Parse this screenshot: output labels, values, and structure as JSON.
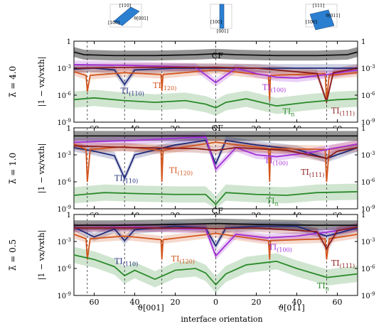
{
  "figure": {
    "x_label": "interface orientation",
    "x_sub_left": "ϑ[001]",
    "x_sub_right": "ϑ[011]",
    "y_label": "|1 − vx/vxth|",
    "insets": {
      "left": {
        "labels": [
          "[110]",
          "[100]",
          "ϑ[001]"
        ]
      },
      "center": {
        "labels": [
          "[100]",
          "[001]"
        ]
      },
      "right": {
        "labels": [
          "[111]",
          "[100]",
          "ϑ[011]"
        ]
      }
    }
  },
  "colors": {
    "CF": "#111111",
    "TI110": "#1f2a7a",
    "TI120": "#d2541c",
    "TI100": "#a12fd6",
    "TI111": "#8b1a1a",
    "TIn": "#2a8a2a"
  },
  "chart_data": [
    {
      "type": "line",
      "lambda_label": "λ̃ = 4.0",
      "xlim": [
        -70,
        70
      ],
      "ylim_log10": [
        -9,
        0
      ],
      "x_ticks": [
        "60",
        "40",
        "20",
        "0",
        "20",
        "40",
        "60"
      ],
      "y_ticks_left": [
        "1",
        "10^-3",
        "10^-6",
        "10^-9"
      ],
      "y_ticks_right": [
        "1",
        "10^-3",
        "10^-6",
        "10^-9"
      ],
      "dashed_x": [
        -63.4,
        -45,
        -26.6,
        0,
        26.6,
        54.7
      ],
      "series": [
        {
          "name": "CF",
          "color_key": "CF",
          "label_x": -2,
          "label_y": -1.9,
          "points": [
            [
              -70,
              -1.2
            ],
            [
              -65,
              -1.5
            ],
            [
              -50,
              -1.6
            ],
            [
              -30,
              -1.6
            ],
            [
              -10,
              -1.5
            ],
            [
              0,
              -1.4
            ],
            [
              10,
              -1.5
            ],
            [
              30,
              -1.6
            ],
            [
              50,
              -1.6
            ],
            [
              65,
              -1.5
            ],
            [
              70,
              -1.2
            ]
          ]
        },
        {
          "name": "TI(110)",
          "color_key": "TI110",
          "label_x": -47,
          "label_y": -5.8,
          "points": [
            [
              -70,
              -3.1
            ],
            [
              -60,
              -3.0
            ],
            [
              -50,
              -3.2
            ],
            [
              -45,
              -4.8
            ],
            [
              -40,
              -3.2
            ],
            [
              -20,
              -3.0
            ],
            [
              0,
              -3.0
            ],
            [
              20,
              -3.0
            ],
            [
              40,
              -3.0
            ],
            [
              70,
              -3.0
            ]
          ]
        },
        {
          "name": "TI(120)",
          "color_key": "TI120",
          "label_x": -31,
          "label_y": -5.2,
          "points": [
            [
              -70,
              -3.4
            ],
            [
              -64,
              -3.8
            ],
            [
              -63.4,
              -5.6
            ],
            [
              -62,
              -3.8
            ],
            [
              -45,
              -3.5
            ],
            [
              -27,
              -3.7
            ],
            [
              -26.6,
              -5.5
            ],
            [
              -26,
              -3.7
            ],
            [
              0,
              -3.2
            ],
            [
              26,
              -3.8
            ],
            [
              26.6,
              -6.6
            ],
            [
              27,
              -3.8
            ],
            [
              54,
              -3.6
            ],
            [
              54.7,
              -6.5
            ],
            [
              56,
              -3.8
            ],
            [
              70,
              -3.5
            ]
          ]
        },
        {
          "name": "TI(100)",
          "color_key": "TI100",
          "label_x": 23,
          "label_y": -5.4,
          "points": [
            [
              -70,
              -2.6
            ],
            [
              -40,
              -2.7
            ],
            [
              -10,
              -2.9
            ],
            [
              0,
              -4.6
            ],
            [
              10,
              -3.0
            ],
            [
              20,
              -3.6
            ],
            [
              30,
              -4.0
            ],
            [
              40,
              -4.1
            ],
            [
              55,
              -3.7
            ],
            [
              70,
              -3.2
            ]
          ]
        },
        {
          "name": "TI(111)",
          "color_key": "TI111",
          "label_x": 57,
          "label_y": -8.0,
          "points": [
            [
              -70,
              -3.0
            ],
            [
              -40,
              -2.9
            ],
            [
              -10,
              -2.9
            ],
            [
              0,
              -2.9
            ],
            [
              20,
              -3.0
            ],
            [
              50,
              -3.6
            ],
            [
              54.7,
              -6.7
            ],
            [
              58,
              -3.5
            ],
            [
              70,
              -3.0
            ]
          ]
        },
        {
          "name": "TIn",
          "color_key": "TIn",
          "label_x": 33,
          "label_y": -8.1,
          "points": [
            [
              -70,
              -6.5
            ],
            [
              -60,
              -6.3
            ],
            [
              -45,
              -6.6
            ],
            [
              -30,
              -6.8
            ],
            [
              -15,
              -6.6
            ],
            [
              -5,
              -7.0
            ],
            [
              0,
              -7.4
            ],
            [
              5,
              -6.8
            ],
            [
              15,
              -6.4
            ],
            [
              30,
              -7.2
            ],
            [
              45,
              -6.8
            ],
            [
              60,
              -6.5
            ],
            [
              70,
              -6.4
            ]
          ]
        }
      ]
    },
    {
      "type": "line",
      "lambda_label": "λ̃ = 1.0",
      "xlim": [
        -70,
        70
      ],
      "ylim_log10": [
        -9,
        0
      ],
      "x_ticks": [
        "60",
        "40",
        "20",
        "0",
        "20",
        "40",
        "60"
      ],
      "y_ticks_left": [
        "1",
        "10^-3",
        "10^-6",
        "10^-9"
      ],
      "y_ticks_right": [
        "1",
        "10^-3",
        "10^-6",
        "10^-9"
      ],
      "dashed_x": [
        -63.4,
        -45,
        -26.6,
        0,
        26.6,
        54.7
      ],
      "series": [
        {
          "name": "CF",
          "color_key": "CF",
          "label_x": -2,
          "label_y": -0.3,
          "points": [
            [
              -70,
              -0.9
            ],
            [
              -50,
              -0.9
            ],
            [
              -20,
              -0.9
            ],
            [
              0,
              -0.9
            ],
            [
              20,
              -0.9
            ],
            [
              50,
              -0.9
            ],
            [
              70,
              -0.9
            ]
          ]
        },
        {
          "name": "TI(110)",
          "color_key": "TI110",
          "label_x": -50,
          "label_y": -5.9,
          "points": [
            [
              -70,
              -2.2
            ],
            [
              -60,
              -2.6
            ],
            [
              -50,
              -3.1
            ],
            [
              -45,
              -5.6
            ],
            [
              -40,
              -3.0
            ],
            [
              -20,
              -1.9
            ],
            [
              -5,
              -1.4
            ],
            [
              0,
              -4.0
            ],
            [
              5,
              -1.4
            ],
            [
              20,
              -1.9
            ],
            [
              40,
              -2.4
            ],
            [
              54.7,
              -3.4
            ],
            [
              70,
              -2.2
            ]
          ]
        },
        {
          "name": "TI(120)",
          "color_key": "TI120",
          "label_x": -23,
          "label_y": -5.0,
          "points": [
            [
              -70,
              -1.8
            ],
            [
              -64,
              -2.4
            ],
            [
              -63.4,
              -6.0
            ],
            [
              -62,
              -2.4
            ],
            [
              -45,
              -2.1
            ],
            [
              -27,
              -2.5
            ],
            [
              -26.6,
              -6.0
            ],
            [
              -26,
              -2.5
            ],
            [
              0,
              -1.6
            ],
            [
              26,
              -2.3
            ],
            [
              26.6,
              -6.0
            ],
            [
              27,
              -2.3
            ],
            [
              54,
              -2.4
            ],
            [
              54.7,
              -6.0
            ],
            [
              56,
              -2.4
            ],
            [
              70,
              -1.8
            ]
          ]
        },
        {
          "name": "TI(100)",
          "color_key": "TI100",
          "label_x": 24,
          "label_y": -3.9,
          "points": [
            [
              -70,
              -1.6
            ],
            [
              -40,
              -1.4
            ],
            [
              -15,
              -1.1
            ],
            [
              -5,
              -1.0
            ],
            [
              0,
              -4.6
            ],
            [
              10,
              -2.2
            ],
            [
              20,
              -3.0
            ],
            [
              30,
              -3.2
            ],
            [
              45,
              -2.8
            ],
            [
              60,
              -2.2
            ],
            [
              70,
              -1.8
            ]
          ]
        },
        {
          "name": "TI(111)",
          "color_key": "TI111",
          "label_x": 42,
          "label_y": -5.2,
          "points": [
            [
              -70,
              -2.0
            ],
            [
              -40,
              -2.2
            ],
            [
              -10,
              -2.3
            ],
            [
              0,
              -2.5
            ],
            [
              10,
              -2.2
            ],
            [
              35,
              -2.5
            ],
            [
              54.7,
              -3.4
            ],
            [
              60,
              -2.6
            ],
            [
              70,
              -2.2
            ]
          ]
        },
        {
          "name": "TIn",
          "color_key": "TIn",
          "label_x": 25,
          "label_y": -8.4,
          "points": [
            [
              -70,
              -7.5
            ],
            [
              -55,
              -7.2
            ],
            [
              -40,
              -7.3
            ],
            [
              -20,
              -7.4
            ],
            [
              -5,
              -7.4
            ],
            [
              0,
              -8.5
            ],
            [
              5,
              -7.2
            ],
            [
              20,
              -7.4
            ],
            [
              35,
              -7.5
            ],
            [
              50,
              -7.2
            ],
            [
              70,
              -7.1
            ]
          ]
        }
      ]
    },
    {
      "type": "line",
      "lambda_label": "λ̃ = 0.5",
      "xlim": [
        -70,
        70
      ],
      "ylim_log10": [
        -9,
        0
      ],
      "x_ticks": [
        "60",
        "40",
        "20",
        "0",
        "20",
        "40",
        "60"
      ],
      "y_ticks_left": [
        "1",
        "10^-3",
        "10^-6",
        "10^-9"
      ],
      "y_ticks_right": [
        "1",
        "10^-3",
        "10^-6",
        "10^-9"
      ],
      "dashed_x": [
        -63.4,
        -45,
        -26.6,
        0,
        26.6,
        54.7
      ],
      "series": [
        {
          "name": "CF",
          "color_key": "CF",
          "label_x": -2,
          "label_y": 0.1,
          "points": [
            [
              -70,
              -1.2
            ],
            [
              -50,
              -1.2
            ],
            [
              -20,
              -1.1
            ],
            [
              0,
              -1.0
            ],
            [
              20,
              -1.1
            ],
            [
              50,
              -1.2
            ],
            [
              70,
              -1.2
            ]
          ]
        },
        {
          "name": "TI(110)",
          "color_key": "TI110",
          "label_x": -50,
          "label_y": -5.5,
          "points": [
            [
              -70,
              -1.4
            ],
            [
              -60,
              -2.5
            ],
            [
              -50,
              -1.6
            ],
            [
              -45,
              -2.9
            ],
            [
              -40,
              -1.7
            ],
            [
              -20,
              -1.3
            ],
            [
              -5,
              -1.5
            ],
            [
              0,
              -3.5
            ],
            [
              5,
              -1.5
            ],
            [
              20,
              -1.3
            ],
            [
              40,
              -1.3
            ],
            [
              54.7,
              -2.4
            ],
            [
              70,
              -1.5
            ]
          ]
        },
        {
          "name": "TI(120)",
          "color_key": "TI120",
          "label_x": -22,
          "label_y": -5.2,
          "points": [
            [
              -70,
              -2.2
            ],
            [
              -64,
              -2.7
            ],
            [
              -63.4,
              -5.0
            ],
            [
              -62,
              -2.7
            ],
            [
              -45,
              -2.4
            ],
            [
              -27,
              -2.8
            ],
            [
              -26.6,
              -5.0
            ],
            [
              -26,
              -2.8
            ],
            [
              0,
              -2.1
            ],
            [
              26,
              -2.9
            ],
            [
              26.6,
              -5.0
            ],
            [
              27,
              -2.9
            ],
            [
              54,
              -2.7
            ],
            [
              54.7,
              -5.0
            ],
            [
              56,
              -2.7
            ],
            [
              70,
              -2.2
            ]
          ]
        },
        {
          "name": "TI(100)",
          "color_key": "TI100",
          "label_x": 26,
          "label_y": -3.9,
          "points": [
            [
              -70,
              -1.5
            ],
            [
              -40,
              -1.4
            ],
            [
              -15,
              -1.6
            ],
            [
              -5,
              -1.6
            ],
            [
              0,
              -4.6
            ],
            [
              10,
              -2.2
            ],
            [
              25,
              -2.6
            ],
            [
              40,
              -2.4
            ],
            [
              60,
              -1.8
            ],
            [
              70,
              -1.4
            ]
          ]
        },
        {
          "name": "TI(111)",
          "color_key": "TI111",
          "label_x": 57,
          "label_y": -5.7,
          "points": [
            [
              -70,
              -1.5
            ],
            [
              -40,
              -1.5
            ],
            [
              -10,
              -1.5
            ],
            [
              0,
              -1.6
            ],
            [
              20,
              -1.5
            ],
            [
              50,
              -1.9
            ],
            [
              54.7,
              -3.8
            ],
            [
              60,
              -1.8
            ],
            [
              70,
              -1.4
            ]
          ]
        },
        {
          "name": "TIn",
          "color_key": "TIn",
          "label_x": 50,
          "label_y": -8.2,
          "points": [
            [
              -70,
              -4.5
            ],
            [
              -60,
              -5.0
            ],
            [
              -50,
              -5.8
            ],
            [
              -45,
              -6.8
            ],
            [
              -40,
              -6.2
            ],
            [
              -30,
              -7.2
            ],
            [
              -20,
              -6.2
            ],
            [
              -10,
              -6.0
            ],
            [
              -5,
              -6.5
            ],
            [
              0,
              -7.8
            ],
            [
              5,
              -6.6
            ],
            [
              15,
              -5.6
            ],
            [
              30,
              -5.2
            ],
            [
              40,
              -6.0
            ],
            [
              55,
              -7.0
            ],
            [
              70,
              -6.6
            ]
          ]
        }
      ]
    }
  ]
}
